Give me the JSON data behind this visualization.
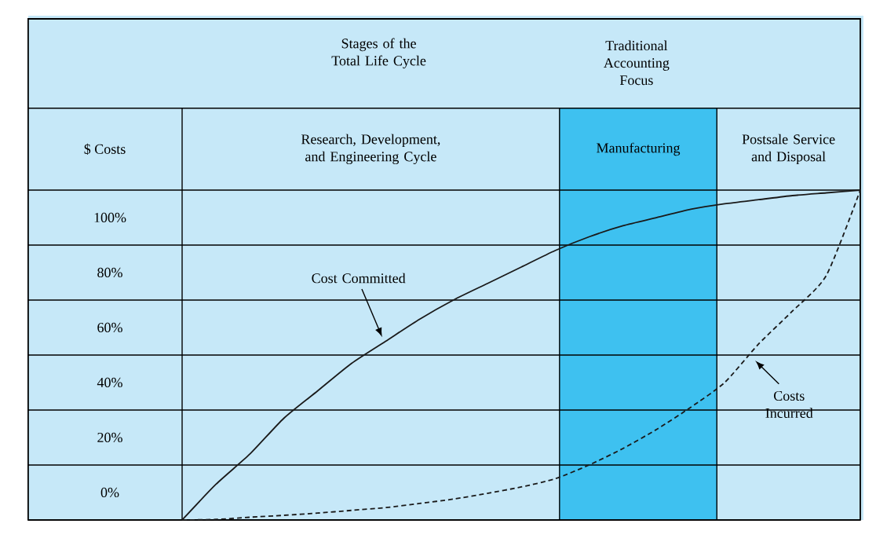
{
  "chart_data": {
    "type": "line",
    "title": "Stages of the Total Life Cycle",
    "ylabel": "$ Costs",
    "annotations": [
      "Traditional Accounting Focus",
      "Research, Development, and Engineering Cycle",
      "Manufacturing",
      "Postsale Service and Disposal"
    ],
    "categories": [
      null,
      null,
      null,
      null,
      null,
      null,
      null,
      null,
      null,
      null,
      null,
      null,
      null,
      null,
      null,
      null,
      null,
      null,
      null,
      null,
      null
    ],
    "ylim": [
      -10,
      110
    ],
    "yticks": [
      {
        "value": 0,
        "label": "0%"
      },
      {
        "value": 20,
        "label": "20%"
      },
      {
        "value": 40,
        "label": "40%"
      },
      {
        "value": 60,
        "label": "60%"
      },
      {
        "value": 80,
        "label": "80%"
      },
      {
        "value": 100,
        "label": "100%"
      }
    ],
    "series": [
      {
        "name": "Cost Committed",
        "color": "#1a1a1a",
        "line_style": "solid",
        "values": [
          -10,
          3,
          14,
          27,
          37,
          47,
          55,
          63,
          70,
          76,
          82,
          88,
          93,
          97,
          100,
          103,
          105,
          106.5,
          108,
          109,
          110
        ]
      },
      {
        "name": "Costs Incurred",
        "color": "#1a1a1a",
        "line_style": "dashed",
        "values": [
          -10,
          -9.8,
          -9,
          -8.3,
          -7.5,
          -6.5,
          -5.5,
          -4,
          -2.4,
          -0.3,
          2,
          5,
          10,
          16,
          23,
          31,
          40,
          54,
          66,
          79,
          110
        ]
      }
    ]
  }
}
